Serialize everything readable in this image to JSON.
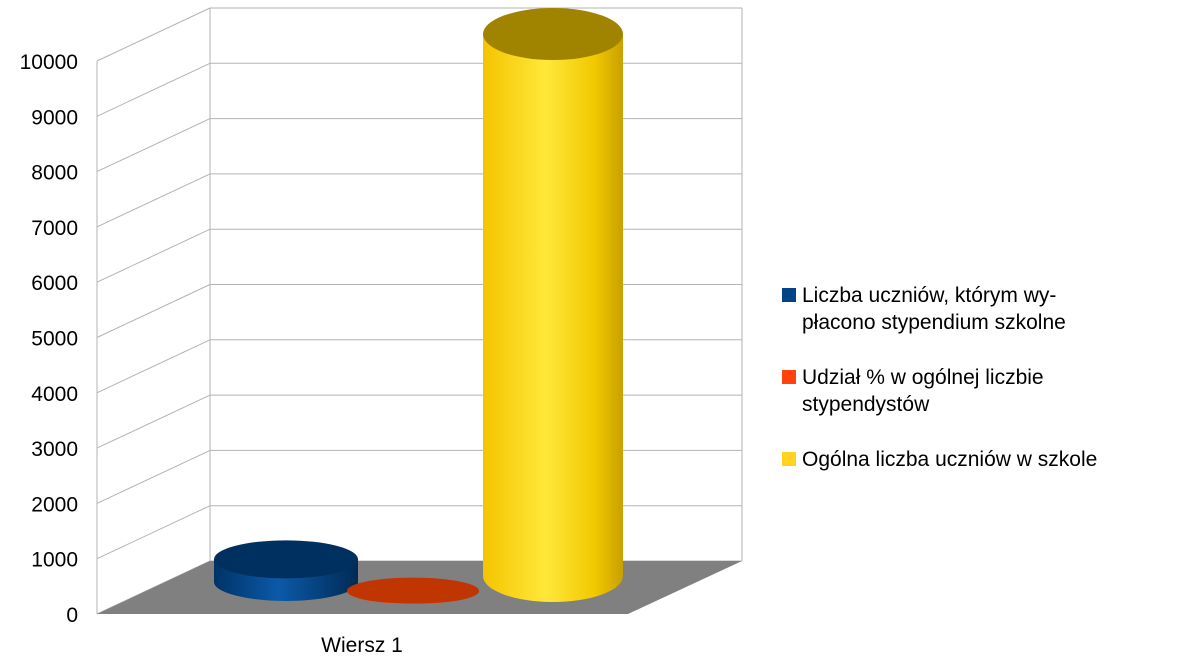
{
  "chart_data": {
    "type": "bar",
    "style": "3d-cylinder",
    "categories": [
      "Wiersz 1"
    ],
    "series": [
      {
        "name": "Liczba uczniów, którym wy-\npłacono  stypendium szkolne",
        "values": [
          410
        ],
        "color": "#004586"
      },
      {
        "name": "Udział % w ogólnej liczbie\nstypendystów",
        "values": [
          6
        ],
        "color": "#ff420e"
      },
      {
        "name": "Ogólna liczba uczniów w szkole",
        "values": [
          9800
        ],
        "color": "#ffd320"
      }
    ],
    "ylim": [
      0,
      10000
    ],
    "yticks": [
      0,
      1000,
      2000,
      3000,
      4000,
      5000,
      6000,
      7000,
      8000,
      9000,
      10000
    ],
    "grid": true,
    "legend_position": "right",
    "colors": {
      "wall_grid": "#b3b3b3",
      "floor": "#808080"
    }
  }
}
